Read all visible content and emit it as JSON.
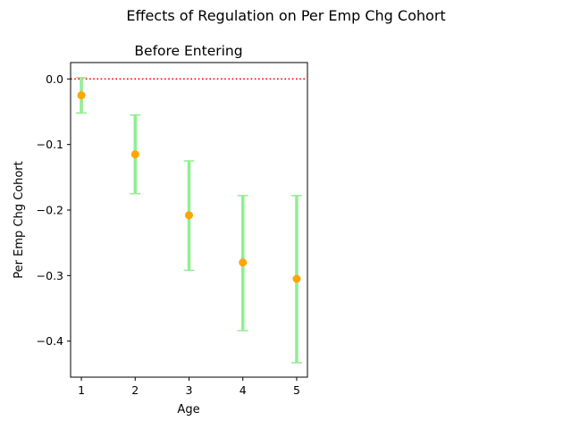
{
  "figure_title": "Effects of Regulation on Per Emp Chg Cohort",
  "chart_data": {
    "type": "scatter",
    "title": "Before Entering",
    "xlabel": "Age",
    "ylabel": "Per Emp Chg Cohort",
    "x_ticks": [
      "1",
      "2",
      "3",
      "4",
      "5"
    ],
    "y_ticks": [
      "0.0",
      "−0.1",
      "−0.2",
      "−0.3",
      "−0.4"
    ],
    "xlim": [
      0.8,
      5.2
    ],
    "ylim": [
      -0.455,
      0.025
    ],
    "reference_line": {
      "y": 0,
      "style": "dotted",
      "color": "#ff0000"
    },
    "points": [
      {
        "x": 1,
        "y": -0.025,
        "lower": -0.052,
        "upper": 0.002
      },
      {
        "x": 2,
        "y": -0.115,
        "lower": -0.175,
        "upper": -0.055
      },
      {
        "x": 3,
        "y": -0.208,
        "lower": -0.292,
        "upper": -0.125
      },
      {
        "x": 4,
        "y": -0.28,
        "lower": -0.384,
        "upper": -0.178
      },
      {
        "x": 5,
        "y": -0.305,
        "lower": -0.433,
        "upper": -0.178
      }
    ],
    "marker_color": "#ffa500",
    "errorbar_color": "#90ee90",
    "grid": false
  }
}
